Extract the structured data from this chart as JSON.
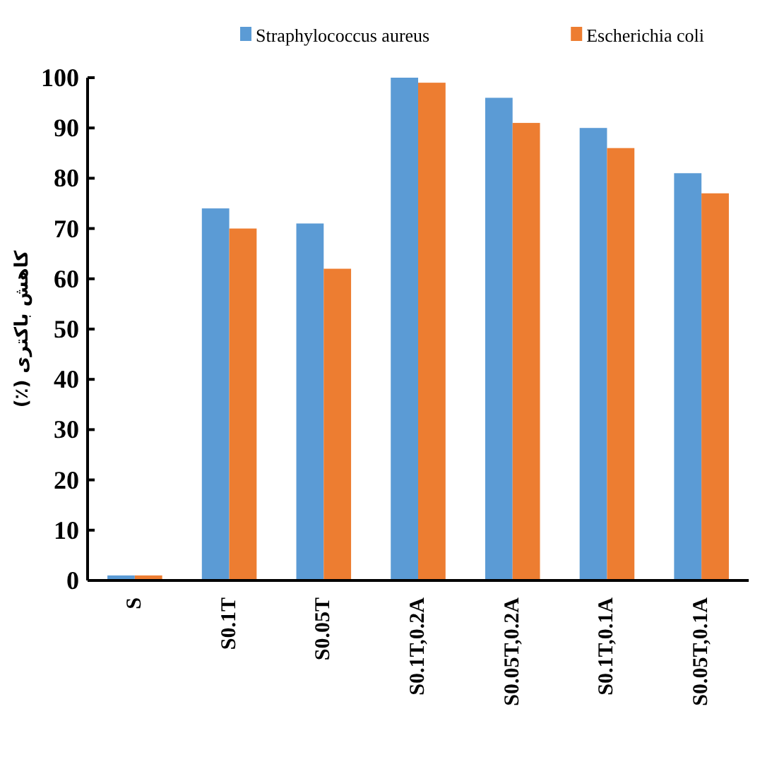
{
  "chart_data": {
    "type": "bar",
    "ylabel": "کاهش باکتری (٪)",
    "categories": [
      "S",
      "S0.1T",
      "S0.05T",
      "S0.1T,0.2A",
      "S0.05T,0.2A",
      "S0.1T,0.1A",
      "S0.05T,0.1A"
    ],
    "series": [
      {
        "name": "Straphylococcus aureus",
        "color": "#5b9bd5",
        "values": [
          1,
          74,
          71,
          100,
          96,
          90,
          81
        ]
      },
      {
        "name": "Escherichia coli",
        "color": "#ed7d31",
        "values": [
          1,
          70,
          62,
          99,
          91,
          86,
          77
        ]
      }
    ],
    "ylim": [
      0,
      100
    ],
    "yticks": [
      0,
      10,
      20,
      30,
      40,
      50,
      60,
      70,
      80,
      90,
      100
    ],
    "grid": false,
    "legend": "top"
  }
}
